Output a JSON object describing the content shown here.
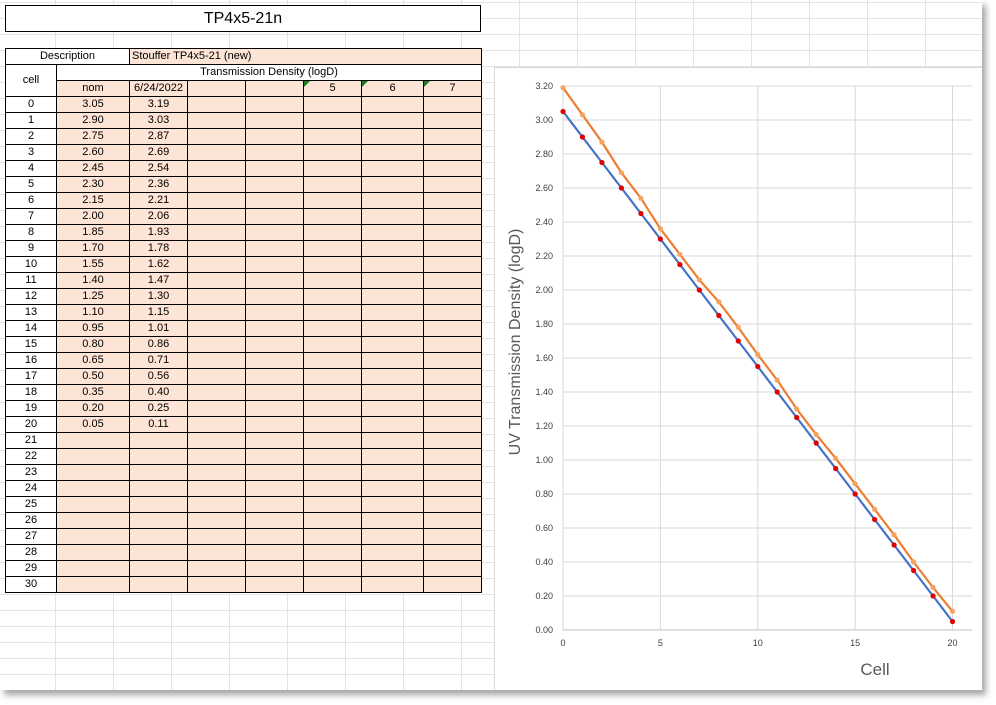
{
  "sheet": {
    "title": "TP4x5-21n",
    "description_label": "Description",
    "description_value": "Stouffer TP4x5-21 (new)",
    "cell_header": "cell",
    "group_header": "Transmission Density (logD)",
    "col_headers": [
      "nom",
      "6/24/2022",
      "",
      "",
      "5",
      "6",
      "7"
    ],
    "rows": [
      {
        "cell": "0",
        "nom": "3.05",
        "m1": "3.19"
      },
      {
        "cell": "1",
        "nom": "2.90",
        "m1": "3.03"
      },
      {
        "cell": "2",
        "nom": "2.75",
        "m1": "2.87"
      },
      {
        "cell": "3",
        "nom": "2.60",
        "m1": "2.69"
      },
      {
        "cell": "4",
        "nom": "2.45",
        "m1": "2.54"
      },
      {
        "cell": "5",
        "nom": "2.30",
        "m1": "2.36"
      },
      {
        "cell": "6",
        "nom": "2.15",
        "m1": "2.21"
      },
      {
        "cell": "7",
        "nom": "2.00",
        "m1": "2.06"
      },
      {
        "cell": "8",
        "nom": "1.85",
        "m1": "1.93"
      },
      {
        "cell": "9",
        "nom": "1.70",
        "m1": "1.78"
      },
      {
        "cell": "10",
        "nom": "1.55",
        "m1": "1.62"
      },
      {
        "cell": "11",
        "nom": "1.40",
        "m1": "1.47"
      },
      {
        "cell": "12",
        "nom": "1.25",
        "m1": "1.30"
      },
      {
        "cell": "13",
        "nom": "1.10",
        "m1": "1.15"
      },
      {
        "cell": "14",
        "nom": "0.95",
        "m1": "1.01"
      },
      {
        "cell": "15",
        "nom": "0.80",
        "m1": "0.86"
      },
      {
        "cell": "16",
        "nom": "0.65",
        "m1": "0.71"
      },
      {
        "cell": "17",
        "nom": "0.50",
        "m1": "0.56"
      },
      {
        "cell": "18",
        "nom": "0.35",
        "m1": "0.40"
      },
      {
        "cell": "19",
        "nom": "0.20",
        "m1": "0.25"
      },
      {
        "cell": "20",
        "nom": "0.05",
        "m1": "0.11"
      },
      {
        "cell": "21",
        "nom": "",
        "m1": ""
      },
      {
        "cell": "22",
        "nom": "",
        "m1": ""
      },
      {
        "cell": "23",
        "nom": "",
        "m1": ""
      },
      {
        "cell": "24",
        "nom": "",
        "m1": ""
      },
      {
        "cell": "25",
        "nom": "",
        "m1": ""
      },
      {
        "cell": "26",
        "nom": "",
        "m1": ""
      },
      {
        "cell": "27",
        "nom": "",
        "m1": ""
      },
      {
        "cell": "28",
        "nom": "",
        "m1": ""
      },
      {
        "cell": "29",
        "nom": "",
        "m1": ""
      },
      {
        "cell": "30",
        "nom": "",
        "m1": ""
      }
    ]
  },
  "chart_data": {
    "type": "line",
    "title": "",
    "xlabel": "Cell",
    "ylabel": "UV Transmission Density (logD)",
    "xlim": [
      0,
      21
    ],
    "ylim": [
      0,
      3.2
    ],
    "xticks": [
      "0",
      "5",
      "10",
      "15",
      "20"
    ],
    "yticks": [
      "0.00",
      "0.20",
      "0.40",
      "0.60",
      "0.80",
      "1.00",
      "1.20",
      "1.40",
      "1.60",
      "1.80",
      "2.00",
      "2.20",
      "2.40",
      "2.60",
      "2.80",
      "3.00",
      "3.20"
    ],
    "grid": true,
    "x": [
      0,
      1,
      2,
      3,
      4,
      5,
      6,
      7,
      8,
      9,
      10,
      11,
      12,
      13,
      14,
      15,
      16,
      17,
      18,
      19,
      20
    ],
    "series": [
      {
        "values": [
          3.05,
          2.9,
          2.75,
          2.6,
          2.45,
          2.3,
          2.15,
          2.0,
          1.85,
          1.7,
          1.55,
          1.4,
          1.25,
          1.1,
          0.95,
          0.8,
          0.65,
          0.5,
          0.35,
          0.2,
          0.05
        ],
        "line_color": "#4472c4",
        "marker_color": "#e00000"
      },
      {
        "values": [
          3.19,
          3.03,
          2.87,
          2.69,
          2.54,
          2.36,
          2.21,
          2.06,
          1.93,
          1.78,
          1.62,
          1.47,
          1.3,
          1.15,
          1.01,
          0.86,
          0.71,
          0.56,
          0.4,
          0.25,
          0.11
        ],
        "line_color": "#ed7d31",
        "marker_color": "#f4a460"
      }
    ]
  }
}
